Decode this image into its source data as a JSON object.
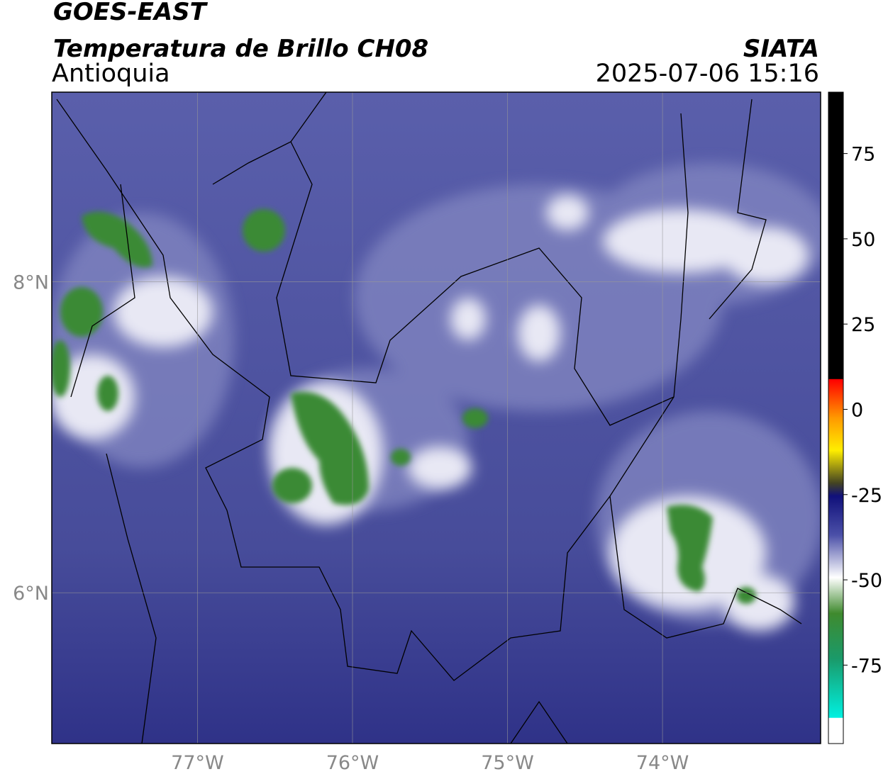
{
  "header": {
    "title": "GOES-EAST",
    "subtitle": "Temperatura de Brillo CH08",
    "region": "Antioquia",
    "source": "SIATA",
    "timestamp": "2025-07-06 15:16"
  },
  "map": {
    "xlim": [
      -77.94,
      -72.98
    ],
    "ylim": [
      5.03,
      9.22
    ],
    "xticks": [
      {
        "value": -77,
        "label": "77°W"
      },
      {
        "value": -76,
        "label": "76°W"
      },
      {
        "value": -75,
        "label": "75°W"
      },
      {
        "value": -74,
        "label": "74°W"
      }
    ],
    "yticks": [
      {
        "value": 8,
        "label": "8°N"
      },
      {
        "value": 6,
        "label": "6°N"
      }
    ],
    "grid": true
  },
  "colorbar": {
    "lim": [
      -98,
      93
    ],
    "ticks": [
      75,
      50,
      25,
      0,
      -25,
      -50,
      -75
    ]
  }
}
